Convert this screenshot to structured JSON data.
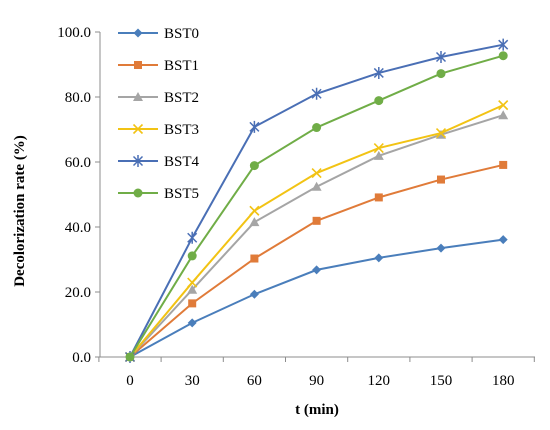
{
  "chart_data": {
    "type": "line",
    "title": "",
    "xlabel": "t (min)",
    "ylabel": "Decolorization rate (%)",
    "x": [
      0,
      30,
      60,
      90,
      120,
      150,
      180
    ],
    "x_tick_labels": [
      "0",
      "30",
      "60",
      "90",
      "120",
      "150",
      "180"
    ],
    "y_tick_labels": [
      "0.0",
      "20.0",
      "40.0",
      "60.0",
      "80.0",
      "100.0"
    ],
    "ylim": [
      0,
      100
    ],
    "grid": false,
    "legend_position": "top-left",
    "series": [
      {
        "name": "BST0",
        "color": "#4a7ebb",
        "marker": "diamond",
        "values": [
          0,
          10.5,
          19.3,
          26.8,
          30.5,
          33.5,
          36.1
        ]
      },
      {
        "name": "BST1",
        "color": "#e07b39",
        "marker": "square",
        "values": [
          0,
          16.5,
          30.3,
          41.9,
          49.1,
          54.6,
          59.1
        ]
      },
      {
        "name": "BST2",
        "color": "#a5a5a5",
        "marker": "triangle",
        "values": [
          0,
          20.7,
          41.5,
          52.4,
          61.9,
          68.4,
          74.4
        ]
      },
      {
        "name": "BST3",
        "color": "#f2c314",
        "marker": "x",
        "values": [
          0,
          22.9,
          45.0,
          56.6,
          64.3,
          68.9,
          77.5
        ]
      },
      {
        "name": "BST4",
        "color": "#4a6fb5",
        "marker": "star",
        "values": [
          0,
          36.7,
          70.8,
          81.0,
          87.4,
          92.3,
          96.1
        ]
      },
      {
        "name": "BST5",
        "color": "#70ad47",
        "marker": "circle",
        "values": [
          0,
          31.1,
          58.9,
          70.6,
          78.9,
          87.2,
          92.7
        ]
      }
    ]
  }
}
